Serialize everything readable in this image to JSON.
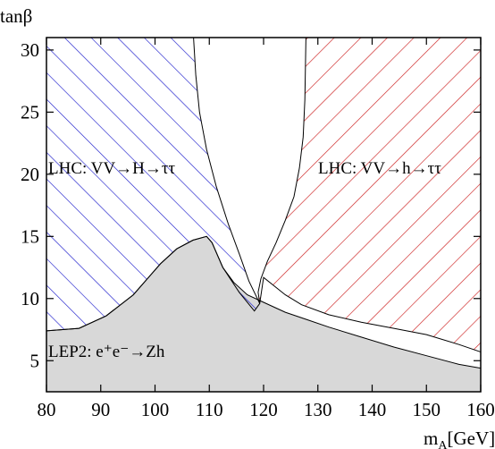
{
  "chart_data": {
    "type": "area",
    "xlabel": "m",
    "xlabel_sub": "A",
    "xlabel_unit": "[GeV]",
    "ylabel": "tanβ",
    "xlim": [
      80,
      160
    ],
    "ylim": [
      2.5,
      31
    ],
    "x_ticks": [
      80,
      90,
      100,
      110,
      120,
      130,
      140,
      150,
      160
    ],
    "y_ticks": [
      5,
      10,
      15,
      20,
      25,
      30
    ],
    "grid": false,
    "legend": "none",
    "regions": [
      {
        "name": "LHC: VV→H→ττ",
        "label_text": "LHC: VV→H→ττ",
        "fill": "hatch",
        "hatch_direction": "top-left to bottom-right",
        "color": "#1f1fcc",
        "boundary": [
          [
            80,
            31
          ],
          [
            107.1,
            31
          ],
          [
            107.5,
            28
          ],
          [
            108.2,
            25
          ],
          [
            109.5,
            22
          ],
          [
            111.3,
            19
          ],
          [
            113.5,
            16
          ],
          [
            115.6,
            13.5
          ],
          [
            117.3,
            11.4
          ],
          [
            119.3,
            9.6
          ],
          [
            118.3,
            9.0
          ],
          [
            115.5,
            10.5
          ],
          [
            112.5,
            12.5
          ],
          [
            110.5,
            14.5
          ],
          [
            109.5,
            15.0
          ],
          [
            107,
            14.7
          ],
          [
            104,
            14.0
          ],
          [
            101,
            12.8
          ],
          [
            99,
            11.8
          ],
          [
            96,
            10.3
          ],
          [
            91,
            8.6
          ],
          [
            86,
            7.6
          ],
          [
            83,
            7.5
          ],
          [
            80,
            7.4
          ]
        ]
      },
      {
        "name": "LHC: VV→h→ττ",
        "label_text": "LHC: VV→h→ττ",
        "fill": "hatch",
        "hatch_direction": "bottom-left to top-right",
        "color": "#cc1f1f",
        "boundary": [
          [
            127.8,
            31
          ],
          [
            160,
            31
          ],
          [
            160,
            5.7
          ],
          [
            156,
            6.3
          ],
          [
            150,
            7.1
          ],
          [
            144,
            7.6
          ],
          [
            138,
            8.1
          ],
          [
            132,
            8.7
          ],
          [
            127,
            9.5
          ],
          [
            124,
            10.3
          ],
          [
            122,
            11.0
          ],
          [
            120,
            11.7
          ],
          [
            119.3,
            9.6
          ],
          [
            119.0,
            10.5
          ],
          [
            119.5,
            11.6
          ],
          [
            120.7,
            13.0
          ],
          [
            122.3,
            14.5
          ],
          [
            124.0,
            16.3
          ],
          [
            125.6,
            18.2
          ],
          [
            126.6,
            20.5
          ],
          [
            127.3,
            23.0
          ],
          [
            127.6,
            26.0
          ],
          [
            127.7,
            28.5
          ]
        ]
      },
      {
        "name": "LEP2: e+e−→Zh",
        "label_text": "LEP2: e⁺e⁻→Zh",
        "fill": "solid",
        "color": "#d8d8d8",
        "boundary": [
          [
            80,
            2.5
          ],
          [
            80,
            7.4
          ],
          [
            83,
            7.5
          ],
          [
            86,
            7.6
          ],
          [
            91,
            8.6
          ],
          [
            96,
            10.3
          ],
          [
            99,
            11.8
          ],
          [
            101,
            12.8
          ],
          [
            104,
            14.0
          ],
          [
            107,
            14.7
          ],
          [
            109.5,
            15.0
          ],
          [
            110.5,
            14.5
          ],
          [
            112.5,
            12.5
          ],
          [
            114.5,
            11.3
          ],
          [
            117,
            10.3
          ],
          [
            120,
            9.7
          ],
          [
            124,
            8.9
          ],
          [
            128,
            8.3
          ],
          [
            132,
            7.7
          ],
          [
            138,
            6.9
          ],
          [
            144,
            6.1
          ],
          [
            150,
            5.4
          ],
          [
            156,
            4.7
          ],
          [
            160,
            4.4
          ],
          [
            160,
            2.5
          ]
        ]
      }
    ]
  }
}
